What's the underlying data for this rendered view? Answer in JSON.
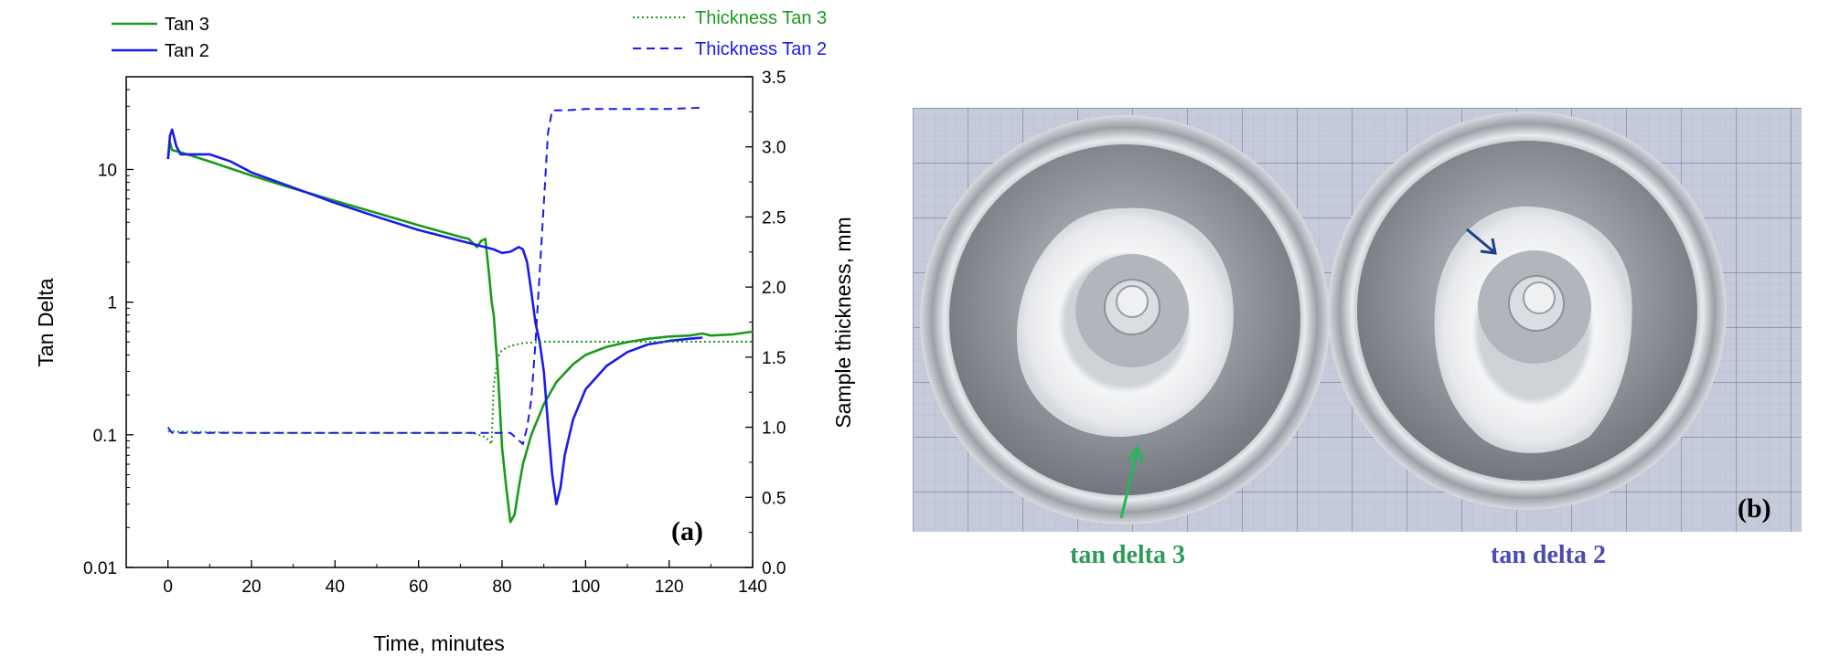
{
  "chart_data": {
    "type": "line",
    "panel_label": "(a)",
    "xlabel": "Time, minutes",
    "ylabel_left": "Tan Delta",
    "ylabel_right": "Sample thickness, mm",
    "xlim": [
      -10,
      140
    ],
    "ylim_left": [
      0.01,
      50
    ],
    "yscale_left": "log",
    "ylim_right": [
      0.0,
      3.5
    ],
    "x_ticks": [
      "0",
      "20",
      "40",
      "60",
      "80",
      "100",
      "120",
      "140"
    ],
    "y_left_ticks": [
      "0.01",
      "0.1",
      "1",
      "10"
    ],
    "y_right_ticks": [
      "0.0",
      "0.5",
      "1.0",
      "1.5",
      "2.0",
      "2.5",
      "3.0",
      "3.5"
    ],
    "grid": false,
    "legend_left": [
      "Tan 3",
      "Tan 2"
    ],
    "legend_right": [
      "Thickness Tan 3",
      "Thickness Tan 2"
    ],
    "series": [
      {
        "name": "Tan 3",
        "axis": "left",
        "style": "solid",
        "color": "#1a9a1a",
        "points": [
          [
            0,
            12
          ],
          [
            0.5,
            16
          ],
          [
            1,
            14
          ],
          [
            3,
            13.5
          ],
          [
            10,
            11.5
          ],
          [
            20,
            9
          ],
          [
            30,
            7.2
          ],
          [
            40,
            5.8
          ],
          [
            50,
            4.7
          ],
          [
            60,
            3.8
          ],
          [
            70,
            3.1
          ],
          [
            72,
            3.0
          ],
          [
            74,
            2.6
          ],
          [
            75,
            2.9
          ],
          [
            76,
            3.0
          ],
          [
            77,
            1.5
          ],
          [
            77.5,
            1.0
          ],
          [
            78,
            0.8
          ],
          [
            79,
            0.3
          ],
          [
            80,
            0.08
          ],
          [
            81,
            0.04
          ],
          [
            82,
            0.022
          ],
          [
            83,
            0.025
          ],
          [
            84,
            0.04
          ],
          [
            85,
            0.06
          ],
          [
            87,
            0.1
          ],
          [
            90,
            0.17
          ],
          [
            93,
            0.25
          ],
          [
            97,
            0.34
          ],
          [
            100,
            0.4
          ],
          [
            105,
            0.46
          ],
          [
            110,
            0.5
          ],
          [
            115,
            0.53
          ],
          [
            120,
            0.55
          ],
          [
            125,
            0.56
          ],
          [
            128,
            0.58
          ],
          [
            130,
            0.56
          ],
          [
            135,
            0.57
          ],
          [
            140,
            0.6
          ]
        ]
      },
      {
        "name": "Tan 2",
        "axis": "left",
        "style": "solid",
        "color": "#1a1aee",
        "points": [
          [
            0,
            12
          ],
          [
            0.5,
            18
          ],
          [
            1,
            20
          ],
          [
            2,
            15
          ],
          [
            3,
            13
          ],
          [
            5,
            13
          ],
          [
            10,
            13
          ],
          [
            15,
            11.5
          ],
          [
            20,
            9.5
          ],
          [
            30,
            7.3
          ],
          [
            40,
            5.6
          ],
          [
            50,
            4.4
          ],
          [
            60,
            3.5
          ],
          [
            70,
            2.9
          ],
          [
            78,
            2.5
          ],
          [
            80,
            2.35
          ],
          [
            82,
            2.4
          ],
          [
            84,
            2.6
          ],
          [
            85,
            2.5
          ],
          [
            86,
            2.0
          ],
          [
            87,
            1.2
          ],
          [
            88,
            0.7
          ],
          [
            89,
            0.5
          ],
          [
            90,
            0.3
          ],
          [
            91,
            0.12
          ],
          [
            92,
            0.05
          ],
          [
            93,
            0.03
          ],
          [
            94,
            0.04
          ],
          [
            95,
            0.07
          ],
          [
            97,
            0.13
          ],
          [
            100,
            0.22
          ],
          [
            105,
            0.33
          ],
          [
            110,
            0.42
          ],
          [
            115,
            0.48
          ],
          [
            120,
            0.51
          ],
          [
            125,
            0.53
          ],
          [
            128,
            0.54
          ]
        ]
      },
      {
        "name": "Thickness Tan 3",
        "axis": "right",
        "style": "dotted",
        "color": "#1a9a1a",
        "points": [
          [
            0,
            0.97
          ],
          [
            20,
            0.96
          ],
          [
            40,
            0.96
          ],
          [
            60,
            0.96
          ],
          [
            73,
            0.96
          ],
          [
            76,
            0.93
          ],
          [
            77.5,
            0.88
          ],
          [
            78,
            1.3
          ],
          [
            79,
            1.5
          ],
          [
            80,
            1.55
          ],
          [
            82,
            1.58
          ],
          [
            85,
            1.6
          ],
          [
            90,
            1.61
          ],
          [
            100,
            1.61
          ],
          [
            120,
            1.61
          ],
          [
            140,
            1.61
          ]
        ]
      },
      {
        "name": "Thickness Tan 2",
        "axis": "right",
        "style": "dashed",
        "color": "#1a1aee",
        "points": [
          [
            0,
            1.0
          ],
          [
            1,
            0.96
          ],
          [
            20,
            0.96
          ],
          [
            40,
            0.96
          ],
          [
            60,
            0.96
          ],
          [
            82,
            0.96
          ],
          [
            83.5,
            0.92
          ],
          [
            85,
            0.88
          ],
          [
            86,
            1.0
          ],
          [
            87,
            1.2
          ],
          [
            88,
            1.6
          ],
          [
            89,
            2.1
          ],
          [
            90,
            2.6
          ],
          [
            91,
            3.1
          ],
          [
            92,
            3.26
          ],
          [
            95,
            3.26
          ],
          [
            100,
            3.27
          ],
          [
            110,
            3.27
          ],
          [
            120,
            3.27
          ],
          [
            128,
            3.28
          ]
        ]
      }
    ]
  },
  "photo": {
    "panel_label": "(b)",
    "caption_left": "tan delta 3",
    "caption_right": "tan delta 2",
    "caption_left_color": "#2e9a5a",
    "caption_right_color": "#4a4ab0"
  }
}
